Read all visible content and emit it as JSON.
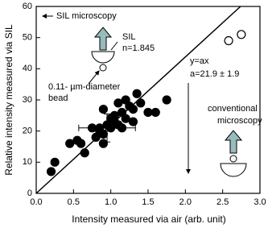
{
  "chart_data": {
    "type": "scatter",
    "xlabel": "Intensity measured via air (arb. unit)",
    "ylabel": "Relative intensity measured via SIL",
    "xlim": [
      0,
      3
    ],
    "ylim": [
      0,
      60
    ],
    "xticks": [
      {
        "value": 0,
        "label": "0.0"
      },
      0.5,
      {
        "value": 1,
        "label": "1.0"
      },
      1.5,
      {
        "value": 2,
        "label": "2.0"
      },
      2.5,
      {
        "value": 3,
        "label": "3.0"
      }
    ],
    "yticks": [
      0,
      10,
      20,
      30,
      40,
      50,
      60
    ],
    "series": [
      {
        "color": "#000000",
        "filled": true,
        "x": [
          0.2,
          0.25,
          0.45,
          0.55,
          0.65,
          0.6,
          0.75,
          0.8,
          0.85,
          0.85,
          0.9,
          0.9,
          0.95,
          1.0,
          1.0,
          1.05,
          1.05,
          1.1,
          1.1,
          1.15,
          1.2,
          1.2,
          1.25,
          1.3,
          1.35,
          1.4,
          1.5,
          1.6,
          1.75,
          0.9,
          1.15,
          1.3
        ],
        "values": [
          7,
          10,
          16,
          17,
          13,
          16,
          21,
          18,
          21,
          20,
          27,
          16,
          22,
          21,
          24,
          23,
          25,
          22,
          29,
          26,
          30,
          24,
          28,
          27,
          32,
          29,
          26,
          26,
          30,
          19,
          21,
          23
        ]
      },
      {
        "color": "#000000",
        "filled": false,
        "x": [
          2.58,
          2.75
        ],
        "values": [
          49,
          51
        ]
      }
    ],
    "fit_slope": 21.9,
    "error_bar": {
      "x": 0.95,
      "y": 21,
      "xerr": 0.38,
      "yerr": 4.5
    },
    "annotations": {
      "sil_microscopy": "SIL microscopy",
      "sil": "SIL",
      "index": "n=1.845",
      "bead_1": "0.11- µm-diameter",
      "bead_2": "bead",
      "fit_1": "y=ax",
      "fit_2": "a=21.9 ± 1.9",
      "conv_1": "conventional",
      "conv_2": "microscopy"
    }
  }
}
